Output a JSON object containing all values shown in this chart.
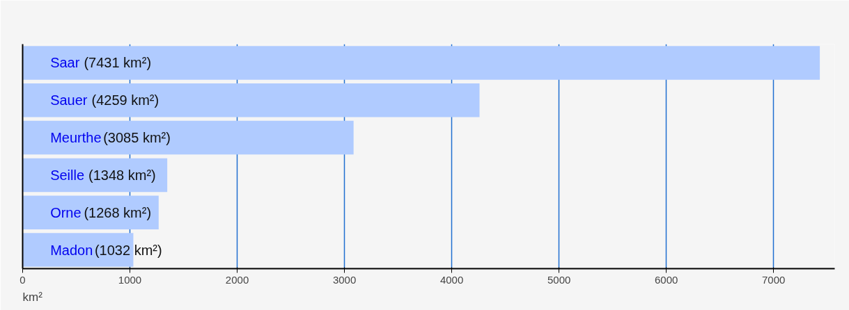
{
  "chart_data": {
    "type": "bar",
    "orientation": "horizontal",
    "categories": [
      "Saar",
      "Sauer",
      "Meurthe",
      "Seille",
      "Orne",
      "Madon"
    ],
    "values": [
      7431,
      4259,
      3085,
      1348,
      1268,
      1032
    ],
    "value_labels": [
      "(7431 km²)",
      "(4259 km²)",
      "(3085 km²)",
      "(1348 km²)",
      "(1268 km²)",
      "(1032 km²)"
    ],
    "color": "#b0cbff",
    "xlim": [
      0,
      7570
    ],
    "xticks": [
      0,
      1000,
      2000,
      3000,
      4000,
      5000,
      6000,
      7000
    ],
    "xlabel": "km²",
    "grid": "x",
    "tick_labels": "x"
  }
}
